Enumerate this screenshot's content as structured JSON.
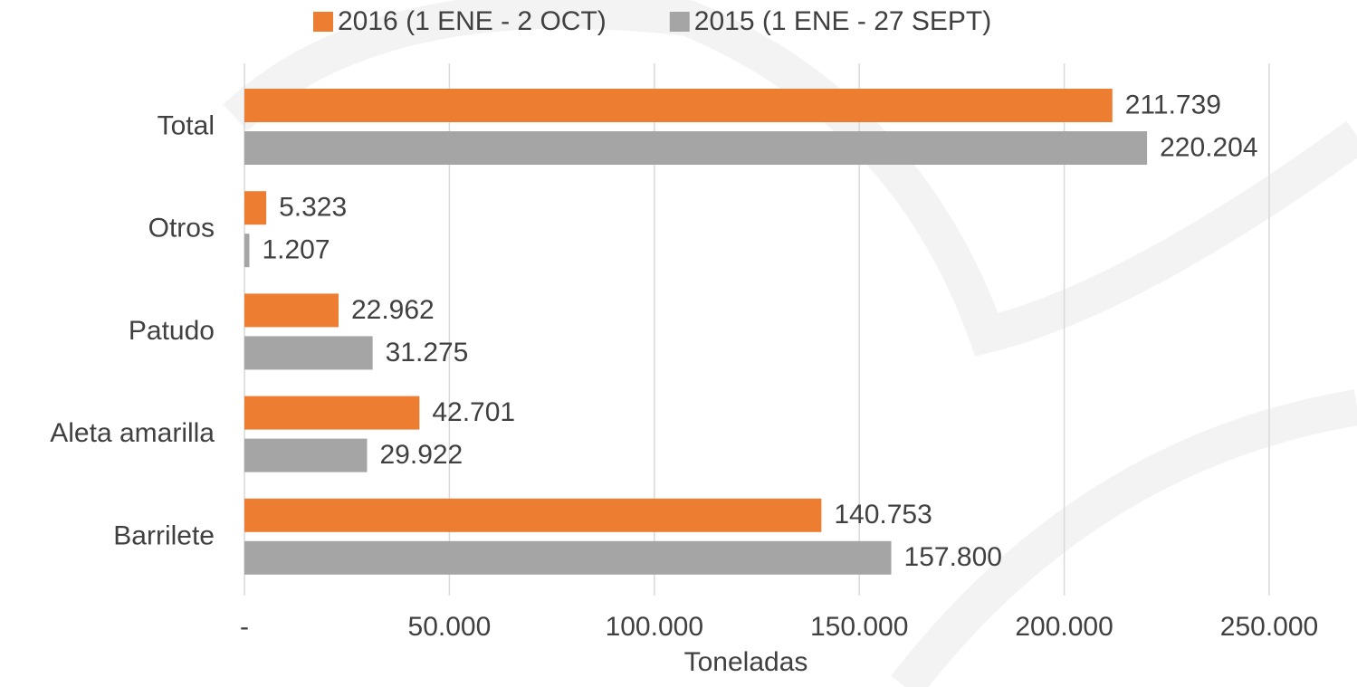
{
  "chart_data": {
    "type": "bar",
    "orientation": "horizontal",
    "x_label": "Toneladas",
    "categories": [
      "Total",
      "Otros",
      "Patudo",
      "Aleta amarilla",
      "Barrilete"
    ],
    "series": [
      {
        "name": "2016 (1 ENE - 2 OCT)",
        "color": "#ed7d31",
        "values": [
          211739,
          5323,
          22962,
          42701,
          140753
        ],
        "value_labels": [
          "211.739",
          "5.323",
          "22.962",
          "42.701",
          "140.753"
        ]
      },
      {
        "name": "2015 (1 ENE - 27 SEPT)",
        "color": "#a5a5a5",
        "values": [
          220204,
          1207,
          31275,
          29922,
          157800
        ],
        "value_labels": [
          "220.204",
          "1.207",
          "31.275",
          "29.922",
          "157.800"
        ]
      }
    ],
    "xlim": [
      0,
      250000
    ],
    "xticks": [
      {
        "value": 0,
        "label": "-"
      },
      {
        "value": 50000,
        "label": "50.000"
      },
      {
        "value": 100000,
        "label": "100.000"
      },
      {
        "value": 150000,
        "label": "150.000"
      },
      {
        "value": 200000,
        "label": "200.000"
      },
      {
        "value": 250000,
        "label": "250.000"
      }
    ],
    "grid": true,
    "legend": "top"
  }
}
